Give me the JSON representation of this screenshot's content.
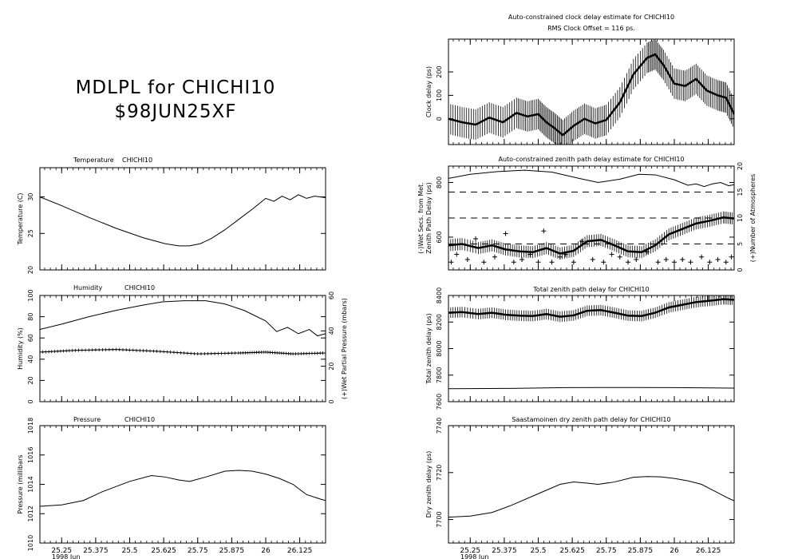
{
  "header": {
    "line1": "MDLPL for CHICHI10",
    "line2": "$98JUN25XF"
  },
  "x_axis": {
    "ticks": [
      25.25,
      25.375,
      25.5,
      25.625,
      25.75,
      25.875,
      26,
      26.125
    ],
    "tick_labels": [
      "25.25",
      "25.375",
      "25.5",
      "25.625",
      "25.75",
      "25.875",
      "26",
      "26.125"
    ],
    "xlim": [
      25.17,
      26.22
    ],
    "caption": "1998 Jun"
  },
  "chart_data": [
    {
      "id": "temperature",
      "type": "line",
      "title": "Temperature",
      "station": "CHICHI10",
      "ylabel": "Temperature (C)",
      "ylim": [
        20,
        34
      ],
      "yticks": [
        20,
        25,
        30
      ],
      "ytick_labels": [
        "20",
        "25",
        "30"
      ],
      "series": [
        {
          "name": "",
          "x": [
            25.17,
            25.25,
            25.35,
            25.45,
            25.55,
            25.63,
            25.68,
            25.72,
            25.76,
            25.8,
            25.85,
            25.9,
            25.95,
            26.0,
            26.03,
            26.06,
            26.09,
            26.12,
            26.15,
            26.18,
            26.22
          ],
          "y": [
            30.0,
            28.8,
            27.2,
            25.7,
            24.4,
            23.6,
            23.3,
            23.3,
            23.6,
            24.3,
            25.5,
            26.9,
            28.3,
            29.8,
            29.4,
            30.1,
            29.6,
            30.3,
            29.8,
            30.1,
            29.9
          ]
        }
      ]
    },
    {
      "id": "humidity",
      "type": "line",
      "title": "Humidity",
      "station": "CHICHI10",
      "ylabel": "Humidity (%)",
      "ylim": [
        0,
        100
      ],
      "yticks": [
        0,
        20,
        40,
        60,
        80,
        100
      ],
      "ytick_labels": [
        "0",
        "20",
        "40",
        "60",
        "80",
        "100"
      ],
      "y2label": "(+)Wet Partial Pressure (mbars)",
      "y2lim": [
        0,
        60
      ],
      "y2ticks": [
        0,
        20,
        40,
        60
      ],
      "y2tick_labels": [
        "0",
        "20",
        "40",
        "60"
      ],
      "series": [
        {
          "name": "Humidity (%)",
          "axis": "left",
          "x": [
            25.17,
            25.25,
            25.35,
            25.45,
            25.55,
            25.62,
            25.7,
            25.78,
            25.85,
            25.92,
            26.0,
            26.04,
            26.08,
            26.12,
            26.16,
            26.19,
            26.22
          ],
          "y": [
            68,
            73,
            80,
            86,
            91,
            94,
            95,
            95,
            92,
            86,
            76,
            66,
            70,
            64,
            68,
            62,
            64
          ]
        },
        {
          "name": "(+)Wet Partial Pressure (mbars)",
          "axis": "right",
          "marker": "+",
          "x": [
            25.17,
            25.3,
            25.45,
            25.6,
            25.75,
            25.9,
            26.0,
            26.1,
            26.22
          ],
          "y": [
            28,
            29,
            29.5,
            28.5,
            27,
            27.5,
            28,
            27,
            27.5
          ]
        }
      ]
    },
    {
      "id": "pressure",
      "type": "line",
      "title": "Pressure",
      "station": "CHICHI10",
      "ylabel": "Pressure (millibars",
      "ylim": [
        1010,
        1018
      ],
      "yticks": [
        1010,
        1012,
        1014,
        1016,
        1018
      ],
      "ytick_labels": [
        "1010",
        "1012",
        "1014",
        "1016",
        "1018"
      ],
      "series": [
        {
          "name": "",
          "x": [
            25.17,
            25.25,
            25.33,
            25.4,
            25.5,
            25.58,
            25.63,
            25.68,
            25.72,
            25.78,
            25.85,
            25.9,
            25.95,
            26.0,
            26.05,
            26.1,
            26.15,
            26.2,
            26.22
          ],
          "y": [
            1012.5,
            1012.6,
            1012.9,
            1013.5,
            1014.2,
            1014.6,
            1014.5,
            1014.3,
            1014.2,
            1014.5,
            1014.9,
            1014.95,
            1014.9,
            1014.7,
            1014.4,
            1014.0,
            1013.3,
            1013.0,
            1012.9
          ]
        }
      ]
    },
    {
      "id": "clock",
      "type": "line",
      "title": "Auto-constrained clock delay estimate for CHICHI10",
      "subtitle": "RMS Clock Offset = 116 ps.",
      "ylabel": "Clock delay (ps)",
      "ylim": [
        -110,
        340
      ],
      "yticks": [
        0,
        100,
        200
      ],
      "ytick_labels": [
        "0",
        "100",
        "200"
      ],
      "error_bar": 65,
      "series": [
        {
          "name": "",
          "x": [
            25.17,
            25.22,
            25.27,
            25.32,
            25.37,
            25.42,
            25.46,
            25.5,
            25.53,
            25.56,
            25.59,
            25.63,
            25.67,
            25.71,
            25.75,
            25.8,
            25.85,
            25.9,
            25.93,
            25.96,
            26.0,
            26.04,
            26.08,
            26.12,
            26.16,
            26.19,
            26.22
          ],
          "y": [
            0,
            -15,
            -25,
            5,
            -15,
            25,
            10,
            20,
            -15,
            -40,
            -70,
            -30,
            0,
            -20,
            -5,
            70,
            190,
            260,
            275,
            230,
            150,
            140,
            170,
            120,
            100,
            90,
            20
          ]
        }
      ]
    },
    {
      "id": "zenith",
      "type": "line",
      "title": "Auto-constrained zenith path delay estimate for CHICHI10",
      "ylabel": "Zenith Path Delay (ps)",
      "ylabel_left2": "(-)Wet Secs. from Met.",
      "ylim": [
        480,
        860
      ],
      "yticks": [
        600,
        800
      ],
      "ytick_labels": [
        "600",
        "800"
      ],
      "y2label": "(+)Number of Atmospheres",
      "y2lim": [
        0,
        20
      ],
      "y2ticks": [
        0,
        5,
        10,
        15,
        20
      ],
      "y2tick_labels": [
        "0",
        "5",
        "10",
        "15",
        "20"
      ],
      "dashed_levels_right": [
        5,
        10,
        15
      ],
      "error_bar": 22,
      "series": [
        {
          "name": "(-)Wet Secs. from Met.",
          "axis": "left",
          "x": [
            25.17,
            25.25,
            25.35,
            25.45,
            25.55,
            25.65,
            25.72,
            25.8,
            25.87,
            25.93,
            26.0,
            26.05,
            26.08,
            26.11,
            26.14,
            26.17,
            26.2,
            26.22
          ],
          "y": [
            815,
            830,
            840,
            845,
            838,
            815,
            800,
            812,
            830,
            828,
            810,
            790,
            795,
            785,
            795,
            800,
            788,
            792
          ]
        },
        {
          "name": "Zenith Path Delay (ps)",
          "axis": "left",
          "x": [
            25.17,
            25.22,
            25.28,
            25.33,
            25.38,
            25.43,
            25.48,
            25.53,
            25.58,
            25.63,
            25.68,
            25.73,
            25.78,
            25.83,
            25.88,
            25.93,
            25.98,
            26.03,
            26.08,
            26.13,
            26.18,
            26.22
          ],
          "y": [
            570,
            575,
            560,
            570,
            555,
            548,
            545,
            560,
            540,
            550,
            585,
            590,
            570,
            548,
            545,
            570,
            610,
            630,
            650,
            660,
            672,
            668
          ]
        },
        {
          "name": "(+)Number of Atmospheres",
          "axis": "right",
          "marker": "+",
          "x": [
            25.18,
            25.2,
            25.24,
            25.27,
            25.3,
            25.34,
            25.38,
            25.41,
            25.44,
            25.47,
            25.5,
            25.52,
            25.55,
            25.58,
            25.6,
            25.63,
            25.66,
            25.7,
            25.74,
            25.77,
            25.8,
            25.83,
            25.86,
            25.9,
            25.94,
            25.97,
            26.0,
            26.03,
            26.06,
            26.1,
            26.13,
            26.16,
            26.19,
            26.21
          ],
          "y": [
            1.5,
            3,
            2,
            6,
            1.5,
            2.5,
            7,
            1.5,
            2,
            3,
            1.5,
            7.5,
            1.5,
            2.5,
            3,
            1.5,
            5.5,
            2,
            1.5,
            3,
            2.5,
            1.5,
            2,
            3.5,
            1.5,
            2,
            1.5,
            2,
            1.5,
            2.5,
            1.5,
            2,
            1.5,
            2.5
          ]
        }
      ]
    },
    {
      "id": "total_zenith",
      "type": "line",
      "title": "Total zenith path delay for CHICHI10",
      "ylabel": "Total zenith delay (ps)",
      "ylim": [
        7600,
        8400
      ],
      "yticks": [
        7600,
        7800,
        8000,
        8200,
        8400
      ],
      "ytick_labels": [
        "7600",
        "7800",
        "8000",
        "8200",
        "8400"
      ],
      "error_bar": 40,
      "series": [
        {
          "name": "Total zenith delay (ps)",
          "x": [
            25.17,
            25.22,
            25.28,
            25.33,
            25.38,
            25.43,
            25.48,
            25.53,
            25.58,
            25.63,
            25.68,
            25.73,
            25.78,
            25.83,
            25.88,
            25.93,
            25.98,
            26.03,
            26.08,
            26.13,
            26.18,
            26.22
          ],
          "y": [
            8270,
            8275,
            8260,
            8270,
            8255,
            8248,
            8245,
            8260,
            8240,
            8250,
            8285,
            8290,
            8270,
            8248,
            8245,
            8270,
            8310,
            8330,
            8350,
            8360,
            8372,
            8368
          ]
        },
        {
          "name": "",
          "x": [
            25.17,
            25.4,
            25.6,
            25.85,
            26.0,
            26.22
          ],
          "y": [
            7698,
            7700,
            7706,
            7707,
            7706,
            7702
          ]
        }
      ]
    },
    {
      "id": "dry_zenith",
      "type": "line",
      "title": "Saastamoinen dry zenith path delay for CHICHI10",
      "ylabel": "Dry zenith delay (ps)",
      "ylim": [
        7690,
        7740
      ],
      "yticks": [
        7700,
        7720,
        7740
      ],
      "ytick_labels": [
        "7700",
        "7720",
        "7740"
      ],
      "series": [
        {
          "name": "",
          "x": [
            25.17,
            25.25,
            25.33,
            25.4,
            25.5,
            25.58,
            25.63,
            25.68,
            25.72,
            25.78,
            25.85,
            25.9,
            25.95,
            26.0,
            26.05,
            26.1,
            26.15,
            26.2,
            26.22
          ],
          "y": [
            7701,
            7701.5,
            7703,
            7706,
            7711,
            7715,
            7716,
            7715.5,
            7715,
            7716,
            7718,
            7718.3,
            7718.2,
            7717.5,
            7716.5,
            7715,
            7712,
            7709,
            7708
          ]
        }
      ]
    }
  ]
}
